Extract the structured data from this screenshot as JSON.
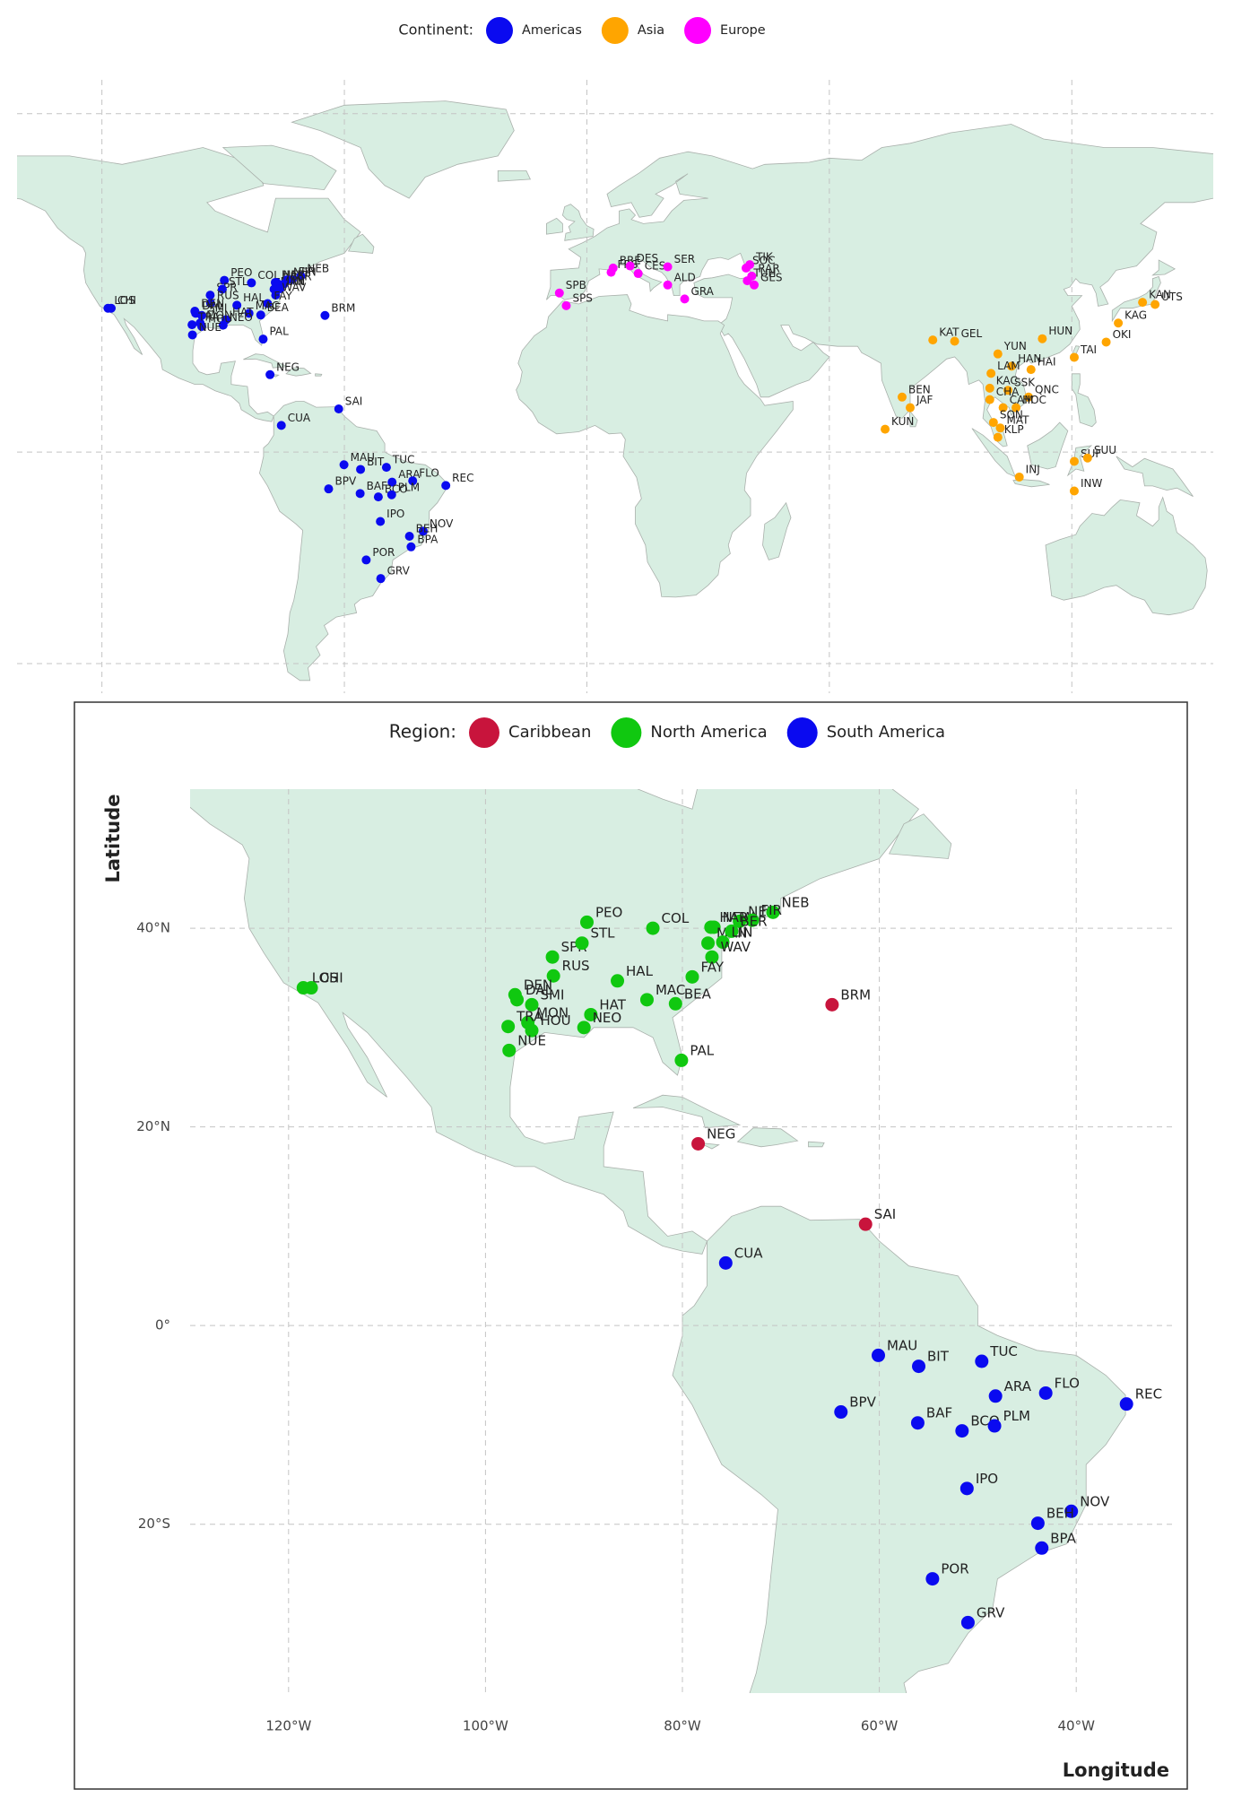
{
  "chart_data": [
    {
      "type": "scatter",
      "legend_title": "Continent:",
      "legend": "top",
      "grid": true,
      "tick_labels": false,
      "xlim": [
        -141,
        155
      ],
      "ylim": [
        -57,
        88
      ],
      "xticks": [
        -120,
        -60,
        0,
        60,
        120
      ],
      "yticks": [
        -50,
        0,
        80
      ],
      "series": [
        {
          "name": "Americas",
          "color": "#0a0af0",
          "labels": [
            "LOS",
            "CHI",
            "PEO",
            "COL",
            "NEW",
            "NEH",
            "NEB",
            "FIR",
            "HAR",
            "MAN",
            "BER",
            "LIN",
            "WAV",
            "SPR",
            "STL",
            "RUS",
            "HAL",
            "FAY",
            "DEN",
            "DAL",
            "SMI",
            "MAC",
            "BEA",
            "HAT",
            "MON",
            "TRA",
            "HOU",
            "NEO",
            "NUE",
            "PAL",
            "BRM",
            "NEG",
            "SAI",
            "CUA",
            "MAU",
            "BIT",
            "TUC",
            "ARA",
            "FLO",
            "REC",
            "BPV",
            "BAF",
            "BCO",
            "PLM",
            "IPO",
            "NOV",
            "BEH",
            "BPA",
            "POR",
            "GRV"
          ],
          "x": [
            -118.5,
            -117.7,
            -89.7,
            -83.0,
            -76.8,
            -74.2,
            -70.8,
            -72.9,
            -77.1,
            -77.4,
            -75.0,
            -75.9,
            -77.0,
            -93.2,
            -90.2,
            -93.1,
            -86.6,
            -79.0,
            -97.0,
            -96.8,
            -95.3,
            -83.6,
            -80.7,
            -89.3,
            -95.7,
            -97.7,
            -95.3,
            -90.0,
            -97.6,
            -80.1,
            -64.8,
            -78.4,
            -61.4,
            -75.6,
            -60.1,
            -56.0,
            -49.6,
            -48.2,
            -43.1,
            -34.9,
            -63.9,
            -56.1,
            -51.6,
            -48.3,
            -51.1,
            -40.5,
            -43.9,
            -43.5,
            -54.6,
            -51.0
          ],
          "values": [
            34.0,
            34.0,
            40.6,
            40.0,
            40.1,
            40.7,
            41.6,
            40.8,
            40.1,
            38.5,
            39.7,
            38.6,
            37.1,
            37.1,
            38.5,
            35.2,
            34.7,
            35.1,
            33.3,
            32.8,
            32.3,
            32.8,
            32.4,
            31.3,
            30.5,
            30.1,
            29.7,
            30.0,
            27.7,
            26.7,
            32.3,
            18.3,
            10.2,
            6.3,
            -3.0,
            -4.1,
            -3.6,
            -7.1,
            -6.8,
            -7.9,
            -8.7,
            -9.8,
            -10.6,
            -10.1,
            -16.4,
            -18.7,
            -19.9,
            -22.4,
            -25.5,
            -29.9
          ]
        },
        {
          "name": "Asia",
          "color": "#ffa500",
          "labels": [
            "KAN",
            "UTS",
            "KAG",
            "OKI",
            "KAT",
            "GEL",
            "YUN",
            "HUN",
            "TAI",
            "HAN",
            "HAI",
            "LAM",
            "KAC",
            "SSK",
            "CHA",
            "QNC",
            "HOC",
            "CAM",
            "SON",
            "MAT",
            "KLP",
            "BEN",
            "JAF",
            "KUN",
            "INJ",
            "SUF",
            "SUU",
            "INW"
          ],
          "x": [
            137.5,
            140.6,
            131.5,
            128.5,
            85.6,
            91.0,
            101.7,
            112.7,
            120.6,
            105.1,
            109.9,
            100.0,
            99.7,
            104.2,
            99.7,
            109.3,
            106.2,
            103.0,
            100.6,
            102.3,
            101.7,
            78.0,
            80.0,
            73.8,
            107.0,
            120.6,
            123.9,
            120.6
          ],
          "values": [
            35.4,
            34.9,
            30.5,
            26.0,
            26.5,
            26.2,
            23.2,
            26.8,
            22.4,
            20.3,
            19.5,
            18.6,
            15.1,
            14.6,
            12.4,
            13.0,
            10.5,
            10.5,
            7.0,
            5.7,
            3.5,
            13.0,
            10.5,
            5.4,
            -5.9,
            -2.2,
            -1.4,
            -9.2
          ]
        },
        {
          "name": "Europe",
          "color": "#ff00ff",
          "labels": [
            "BRE",
            "FRS",
            "DES",
            "CES",
            "SER",
            "SPB",
            "SPS",
            "ALD",
            "GRA",
            "SOC",
            "TIK",
            "RAR",
            "TUH",
            "GES"
          ],
          "x": [
            6.5,
            6.0,
            10.7,
            12.7,
            20.0,
            -6.8,
            -5.1,
            20.0,
            24.2,
            39.4,
            40.3,
            40.8,
            39.7,
            41.4
          ],
          "values": [
            43.5,
            42.5,
            44.0,
            42.2,
            43.8,
            37.6,
            34.6,
            39.5,
            36.2,
            43.5,
            44.3,
            41.6,
            40.5,
            39.5
          ]
        }
      ]
    },
    {
      "type": "scatter",
      "legend_title": "Region:",
      "legend": "top",
      "grid": true,
      "tick_labels": true,
      "x_label": "Longitude",
      "y_label": "Latitude",
      "xlim": [
        -130,
        -30
      ],
      "ylim": [
        -37,
        54
      ],
      "xticks": [
        {
          "value": -120,
          "label": "120°W"
        },
        {
          "value": -100,
          "label": "100°W"
        },
        {
          "value": -80,
          "label": "80°W"
        },
        {
          "value": -60,
          "label": "60°W"
        },
        {
          "value": -40,
          "label": "40°W"
        }
      ],
      "yticks": [
        {
          "value": -20,
          "label": "20°S"
        },
        {
          "value": 0,
          "label": "0°"
        },
        {
          "value": 20,
          "label": "20°N"
        },
        {
          "value": 40,
          "label": "40°N"
        }
      ],
      "series": [
        {
          "name": "Caribbean",
          "color": "#c8143c",
          "labels": [
            "BRM",
            "NEG",
            "SAI"
          ],
          "x": [
            -64.8,
            -78.4,
            -61.4
          ],
          "values": [
            32.3,
            18.3,
            10.2
          ]
        },
        {
          "name": "North America",
          "color": "#10c810",
          "labels": [
            "LOS",
            "CHI",
            "PEO",
            "COL",
            "NEW",
            "NEH",
            "NEB",
            "FIR",
            "HAR",
            "MAN",
            "BER",
            "LIN",
            "WAV",
            "SPR",
            "STL",
            "RUS",
            "HAL",
            "FAY",
            "DEN",
            "DAL",
            "SMI",
            "MAC",
            "BEA",
            "HAT",
            "MON",
            "TRA",
            "HOU",
            "NEO",
            "NUE",
            "PAL"
          ],
          "x": [
            -118.5,
            -117.7,
            -89.7,
            -83.0,
            -76.8,
            -74.2,
            -70.8,
            -72.9,
            -77.1,
            -77.4,
            -75.0,
            -75.9,
            -77.0,
            -93.2,
            -90.2,
            -93.1,
            -86.6,
            -79.0,
            -97.0,
            -96.8,
            -95.3,
            -83.6,
            -80.7,
            -89.3,
            -95.7,
            -97.7,
            -95.3,
            -90.0,
            -97.6,
            -80.1
          ],
          "values": [
            34.0,
            34.0,
            40.6,
            40.0,
            40.1,
            40.7,
            41.6,
            40.8,
            40.1,
            38.5,
            39.7,
            38.6,
            37.1,
            37.1,
            38.5,
            35.2,
            34.7,
            35.1,
            33.3,
            32.8,
            32.3,
            32.8,
            32.4,
            31.3,
            30.5,
            30.1,
            29.7,
            30.0,
            27.7,
            26.7
          ]
        },
        {
          "name": "South America",
          "color": "#0a0af0",
          "labels": [
            "CUA",
            "MAU",
            "BIT",
            "TUC",
            "ARA",
            "FLO",
            "REC",
            "BPV",
            "BAF",
            "BCO",
            "PLM",
            "IPO",
            "NOV",
            "BEH",
            "BPA",
            "POR",
            "GRV"
          ],
          "x": [
            -75.6,
            -60.1,
            -56.0,
            -49.6,
            -48.2,
            -43.1,
            -34.9,
            -63.9,
            -56.1,
            -51.6,
            -48.3,
            -51.1,
            -40.5,
            -43.9,
            -43.5,
            -54.6,
            -51.0
          ],
          "values": [
            6.3,
            -3.0,
            -4.1,
            -3.6,
            -7.1,
            -6.8,
            -7.9,
            -8.7,
            -9.8,
            -10.6,
            -10.1,
            -16.4,
            -18.7,
            -19.9,
            -22.4,
            -25.5,
            -29.9
          ]
        }
      ]
    }
  ]
}
